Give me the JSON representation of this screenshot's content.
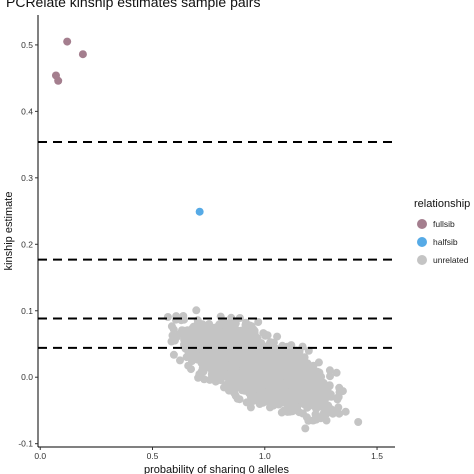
{
  "chart_data": {
    "type": "scatter",
    "title": "PCRelate kinship estimates sample pairs",
    "xlabel": "probability of sharing 0 alleles",
    "ylabel": "kinship estimate",
    "xlim": [
      -0.01,
      1.58
    ],
    "ylim": [
      -0.105,
      0.545
    ],
    "x_ticks": [
      0,
      0.5,
      1.0,
      1.5
    ],
    "x_tick_labels": [
      "0.0",
      "0.5",
      "1.0",
      "1.5"
    ],
    "y_ticks": [
      -0.1,
      0.0,
      0.1,
      0.2,
      0.3,
      0.4,
      0.5
    ],
    "y_tick_labels": [
      "-0.1",
      "0.0",
      "0.1",
      "0.2",
      "0.3",
      "0.4",
      "0.5"
    ],
    "grid": false,
    "legend_position": "right",
    "legend_title": "relationship",
    "hlines": [
      0.354,
      0.177,
      0.0884,
      0.0442
    ],
    "hline_style": "dashed",
    "series": [
      {
        "name": "fullsib",
        "color": "#a47e8e",
        "points": [
          [
            0.12,
            0.505
          ],
          [
            0.19,
            0.486
          ],
          [
            0.07,
            0.454
          ],
          [
            0.08,
            0.446
          ]
        ]
      },
      {
        "name": "halfsib",
        "color": "#56aae6",
        "points": [
          [
            0.71,
            0.249
          ]
        ]
      },
      {
        "name": "unrelated",
        "color": "#c4c4c4",
        "cloud": {
          "count": 2600,
          "x_range": [
            0.45,
            1.52
          ],
          "y_range": [
            -0.09,
            0.16
          ],
          "center": [
            0.97,
            0.015
          ],
          "slope": -0.118,
          "spread_x": 0.2,
          "spread_y": 0.03
        }
      }
    ]
  }
}
